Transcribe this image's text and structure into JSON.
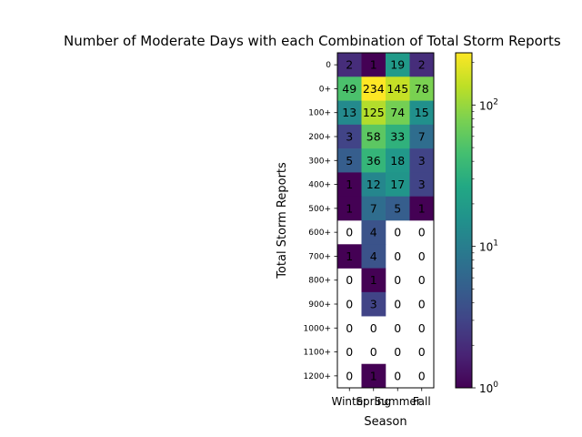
{
  "chart_data": {
    "type": "heatmap",
    "title": "Number of Moderate Days with each Combination of Total Storm Reports",
    "xlabel": "Season",
    "ylabel": "Total Storm Reports",
    "x_categories": [
      "Winter",
      "Spring",
      "Summer",
      "Fall"
    ],
    "y_categories": [
      "0",
      "0+",
      "100+",
      "200+",
      "300+",
      "400+",
      "500+",
      "600+",
      "700+",
      "800+",
      "900+",
      "1000+",
      "1100+",
      "1200+"
    ],
    "values": [
      [
        2,
        1,
        19,
        2
      ],
      [
        49,
        234,
        145,
        78
      ],
      [
        13,
        125,
        74,
        15
      ],
      [
        3,
        58,
        33,
        7
      ],
      [
        5,
        36,
        18,
        3
      ],
      [
        1,
        12,
        17,
        3
      ],
      [
        1,
        7,
        5,
        1
      ],
      [
        0,
        4,
        0,
        0
      ],
      [
        1,
        4,
        0,
        0
      ],
      [
        0,
        1,
        0,
        0
      ],
      [
        0,
        3,
        0,
        0
      ],
      [
        0,
        0,
        0,
        0
      ],
      [
        0,
        0,
        0,
        0
      ],
      [
        0,
        1,
        0,
        0
      ]
    ],
    "colormap": "viridis",
    "color_scale": "log",
    "color_range": [
      1,
      234
    ],
    "zero_cells": "blank (white)",
    "colorbar_ticks": [
      {
        "value": 1,
        "label": "10^0"
      },
      {
        "value": 10,
        "label": "10^1"
      },
      {
        "value": 100,
        "label": "10^2"
      }
    ]
  }
}
